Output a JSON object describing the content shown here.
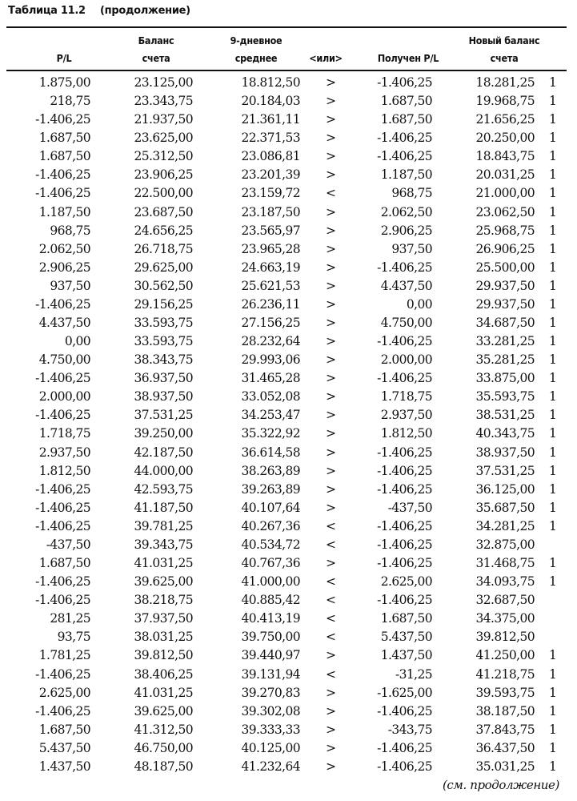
{
  "title": {
    "label": "Таблица 11.2",
    "note": "(продолжение)"
  },
  "headers": {
    "pl": "P/L",
    "balance_1": "Баланс",
    "balance_2": "счета",
    "avg_1": "9-дневное",
    "avg_2": "среднее",
    "cmp": "<или>",
    "received": "Получен P/L",
    "newbal_1": "Новый баланс",
    "newbal_2": "счета"
  },
  "rows": [
    [
      "1.875,00",
      "23.125,00",
      "18.812,50",
      ">",
      "-1.406,25",
      "18.281,25",
      "1"
    ],
    [
      "218,75",
      "23.343,75",
      "20.184,03",
      ">",
      "1.687,50",
      "19.968,75",
      "1"
    ],
    [
      "-1.406,25",
      "21.937,50",
      "21.361,11",
      ">",
      "1.687,50",
      "21.656,25",
      "1"
    ],
    [
      "1.687,50",
      "23.625,00",
      "22.371,53",
      ">",
      "-1.406,25",
      "20.250,00",
      "1"
    ],
    [
      "1.687,50",
      "25.312,50",
      "23.086,81",
      ">",
      "-1.406,25",
      "18.843,75",
      "1"
    ],
    [
      "-1.406,25",
      "23.906,25",
      "23.201,39",
      ">",
      "1.187,50",
      "20.031,25",
      "1"
    ],
    [
      "-1.406,25",
      "22.500,00",
      "23.159,72",
      "<",
      "968,75",
      "21.000,00",
      "1"
    ],
    [
      "1.187,50",
      "23.687,50",
      "23.187,50",
      ">",
      "2.062,50",
      "23.062,50",
      "1"
    ],
    [
      "968,75",
      "24.656,25",
      "23.565,97",
      ">",
      "2.906,25",
      "25.968,75",
      "1"
    ],
    [
      "2.062,50",
      "26.718,75",
      "23.965,28",
      ">",
      "937,50",
      "26.906,25",
      "1"
    ],
    [
      "2.906,25",
      "29.625,00",
      "24.663,19",
      ">",
      "-1.406,25",
      "25.500,00",
      "1"
    ],
    [
      "937,50",
      "30.562,50",
      "25.621,53",
      ">",
      "4.437,50",
      "29.937,50",
      "1"
    ],
    [
      "-1.406,25",
      "29.156,25",
      "26.236,11",
      ">",
      "0,00",
      "29.937,50",
      "1"
    ],
    [
      "4.437,50",
      "33.593,75",
      "27.156,25",
      ">",
      "4.750,00",
      "34.687,50",
      "1"
    ],
    [
      "0,00",
      "33.593,75",
      "28.232,64",
      ">",
      "-1.406,25",
      "33.281,25",
      "1"
    ],
    [
      "4.750,00",
      "38.343,75",
      "29.993,06",
      ">",
      "2.000,00",
      "35.281,25",
      "1"
    ],
    [
      "-1.406,25",
      "36.937,50",
      "31.465,28",
      ">",
      "-1.406,25",
      "33.875,00",
      "1"
    ],
    [
      "2.000,00",
      "38.937,50",
      "33.052,08",
      ">",
      "1.718,75",
      "35.593,75",
      "1"
    ],
    [
      "-1.406,25",
      "37.531,25",
      "34.253,47",
      ">",
      "2.937,50",
      "38.531,25",
      "1"
    ],
    [
      "1.718,75",
      "39.250,00",
      "35.322,92",
      ">",
      "1.812,50",
      "40.343,75",
      "1"
    ],
    [
      "2.937,50",
      "42.187,50",
      "36.614,58",
      ">",
      "-1.406,25",
      "38.937,50",
      "1"
    ],
    [
      "1.812,50",
      "44.000,00",
      "38.263,89",
      ">",
      "-1.406,25",
      "37.531,25",
      "1"
    ],
    [
      "-1.406,25",
      "42.593,75",
      "39.263,89",
      ">",
      "-1.406,25",
      "36.125,00",
      "1"
    ],
    [
      "-1.406,25",
      "41.187,50",
      "40.107,64",
      ">",
      "-437,50",
      "35.687,50",
      "1"
    ],
    [
      "-1.406,25",
      "39.781,25",
      "40.267,36",
      "<",
      "-1.406,25",
      "34.281,25",
      "1"
    ],
    [
      "-437,50",
      "39.343,75",
      "40.534,72",
      "<",
      "-1.406,25",
      "32.875,00",
      ""
    ],
    [
      "1.687,50",
      "41.031,25",
      "40.767,36",
      ">",
      "-1.406,25",
      "31.468,75",
      "1"
    ],
    [
      "-1.406,25",
      "39.625,00",
      "41.000,00",
      "<",
      "2.625,00",
      "34.093,75",
      "1"
    ],
    [
      "-1.406,25",
      "38.218,75",
      "40.885,42",
      "<",
      "-1.406,25",
      "32.687,50",
      ""
    ],
    [
      "281,25",
      "37.937,50",
      "40.413,19",
      "<",
      "1.687,50",
      "34.375,00",
      ""
    ],
    [
      "93,75",
      "38.031,25",
      "39.750,00",
      "<",
      "5.437,50",
      "39.812,50",
      ""
    ],
    [
      "1.781,25",
      "39.812,50",
      "39.440,97",
      ">",
      "1.437,50",
      "41.250,00",
      "1"
    ],
    [
      "-1.406,25",
      "38.406,25",
      "39.131,94",
      "<",
      "-31,25",
      "41.218,75",
      "1"
    ],
    [
      "2.625,00",
      "41.031,25",
      "39.270,83",
      ">",
      "-1.625,00",
      "39.593,75",
      "1"
    ],
    [
      "-1.406,25",
      "39.625,00",
      "39.302,08",
      ">",
      "-1.406,25",
      "38.187,50",
      "1"
    ],
    [
      "1.687,50",
      "41.312,50",
      "39.333,33",
      ">",
      "-343,75",
      "37.843,75",
      "1"
    ],
    [
      "5.437,50",
      "46.750,00",
      "40.125,00",
      ">",
      "-1.406,25",
      "36.437,50",
      "1"
    ],
    [
      "1.437,50",
      "48.187,50",
      "41.232,64",
      ">",
      "-1.406,25",
      "35.031,25",
      "1"
    ]
  ],
  "footer": "(см. продолжение)"
}
